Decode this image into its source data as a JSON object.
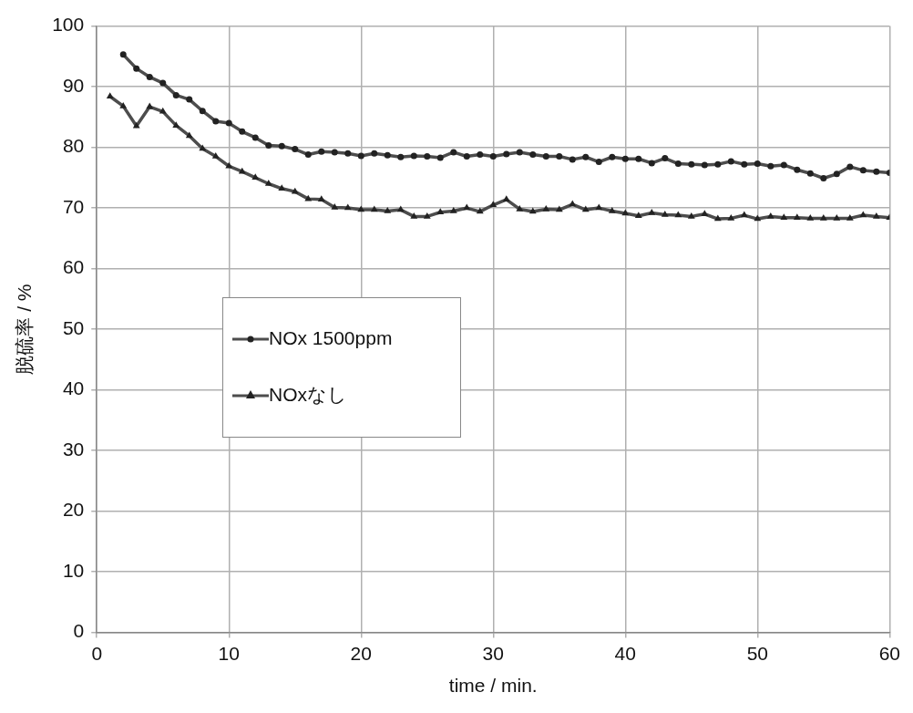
{
  "chart_data": {
    "type": "line",
    "xlabel": "time / min.",
    "ylabel": "脱硫率 / %",
    "xlim": [
      0,
      60
    ],
    "xticks": [
      0,
      10,
      20,
      30,
      40,
      50,
      60
    ],
    "ylim": [
      0,
      100
    ],
    "yticks": [
      0,
      10,
      20,
      30,
      40,
      50,
      60,
      70,
      80,
      90,
      100
    ],
    "grid": true,
    "legend": "left",
    "line_style": "solid",
    "series": [
      {
        "name": "NOx 1500ppm",
        "color": "#4d4d4d",
        "marker": "circle",
        "x": [
          2,
          3,
          4,
          5,
          6,
          7,
          8,
          9,
          10,
          11,
          12,
          13,
          14,
          15,
          16,
          17,
          18,
          19,
          20,
          21,
          22,
          23,
          24,
          25,
          26,
          27,
          28,
          29,
          30,
          31,
          32,
          33,
          34,
          35,
          36,
          37,
          38,
          39,
          40,
          41,
          42,
          43,
          44,
          45,
          46,
          47,
          48,
          49,
          50,
          51,
          52,
          53,
          54,
          55,
          56,
          57,
          58,
          59,
          60
        ],
        "values": [
          95.3,
          93,
          91.6,
          90.6,
          88.6,
          87.9,
          86,
          84.3,
          84,
          82.6,
          81.6,
          80.3,
          80.2,
          79.7,
          78.8,
          79.3,
          79.2,
          79,
          78.6,
          79,
          78.7,
          78.4,
          78.6,
          78.5,
          78.3,
          79.2,
          78.5,
          78.8,
          78.5,
          78.9,
          79.2,
          78.8,
          78.5,
          78.5,
          78,
          78.4,
          77.6,
          78.4,
          78.1,
          78.1,
          77.4,
          78.2,
          77.3,
          77.2,
          77.1,
          77.2,
          77.7,
          77.2,
          77.3,
          76.9,
          77.1,
          76.3,
          75.7,
          74.9,
          75.6,
          76.8,
          76.2,
          76,
          75.8
        ]
      },
      {
        "name": "NOxなし",
        "color": "#4d4d4d",
        "marker": "triangle",
        "x": [
          1,
          2,
          3,
          4,
          5,
          6,
          7,
          8,
          9,
          10,
          11,
          12,
          13,
          14,
          15,
          16,
          17,
          18,
          19,
          20,
          21,
          22,
          23,
          24,
          25,
          26,
          27,
          28,
          29,
          30,
          31,
          32,
          33,
          34,
          35,
          36,
          37,
          38,
          39,
          40,
          41,
          42,
          43,
          44,
          45,
          46,
          47,
          48,
          49,
          50,
          51,
          52,
          53,
          54,
          55,
          56,
          57,
          58,
          59,
          60
        ],
        "values": [
          88.4,
          86.8,
          83.5,
          86.7,
          85.9,
          83.6,
          81.9,
          79.8,
          78.5,
          76.9,
          76,
          75,
          74,
          73.2,
          72.7,
          71.5,
          71.4,
          70.1,
          70,
          69.7,
          69.7,
          69.5,
          69.7,
          68.6,
          68.6,
          69.3,
          69.5,
          70,
          69.4,
          70.5,
          71.4,
          69.8,
          69.4,
          69.8,
          69.7,
          70.6,
          69.7,
          70,
          69.5,
          69.1,
          68.7,
          69.2,
          68.9,
          68.8,
          68.6,
          69,
          68.2,
          68.3,
          68.8,
          68.2,
          68.6,
          68.4,
          68.4,
          68.3,
          68.3,
          68.3,
          68.3,
          68.8,
          68.6,
          68.4
        ]
      }
    ]
  }
}
